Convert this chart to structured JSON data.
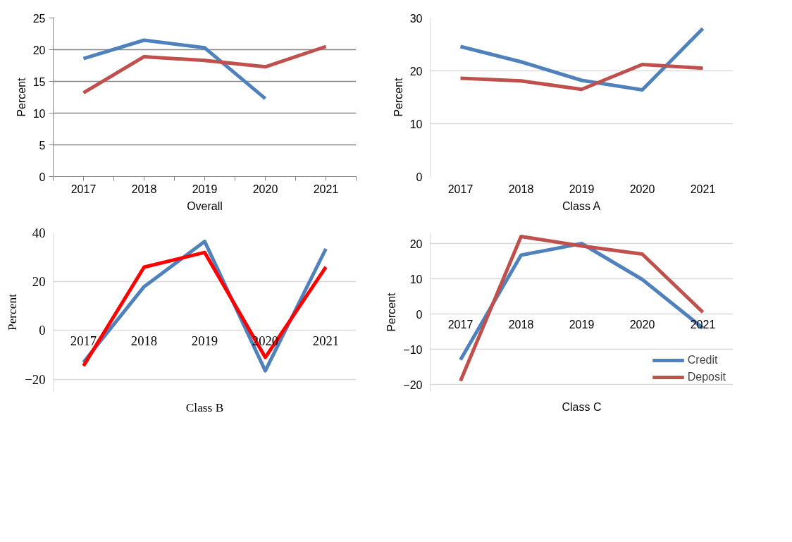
{
  "chart_data": [
    {
      "type": "line",
      "xlabel": "Overall",
      "ylabel": "Percent",
      "categories": [
        "2017",
        "2018",
        "2019",
        "2020",
        "2021"
      ],
      "ylim": [
        0,
        25
      ],
      "yticks": [
        0,
        5,
        10,
        15,
        20,
        25
      ],
      "grid": "y",
      "series": [
        {
          "color": "#4f81bd",
          "values": [
            18.6,
            21.5,
            20.3,
            12.3,
            null
          ]
        },
        {
          "color": "#c0504d",
          "values": [
            13.2,
            18.9,
            18.3,
            17.3,
            20.5
          ]
        }
      ]
    },
    {
      "type": "line",
      "xlabel": "Class A",
      "ylabel": "Percent",
      "categories": [
        "2017",
        "2018",
        "2019",
        "2020",
        "2021"
      ],
      "ylim": [
        0,
        30
      ],
      "yticks": [
        0,
        10,
        20,
        30
      ],
      "grid": "y",
      "series": [
        {
          "color": "#4f81bd",
          "values": [
            24.6,
            21.7,
            18.2,
            16.4,
            28.0
          ]
        },
        {
          "color": "#c0504d",
          "values": [
            18.6,
            18.1,
            16.5,
            21.2,
            20.5
          ]
        }
      ]
    },
    {
      "type": "line",
      "xlabel": "Class B",
      "ylabel": "Percent",
      "categories": [
        "2017",
        "2018",
        "2019",
        "2020",
        "2021"
      ],
      "ylim": [
        -25,
        40
      ],
      "yticks": [
        -20,
        0,
        20,
        40
      ],
      "grid": "y",
      "series": [
        {
          "color": "#4f81bd",
          "values": [
            -13,
            18,
            36.5,
            -16.5,
            33.5
          ]
        },
        {
          "color": "#ff0000",
          "values": [
            -14.5,
            26,
            32,
            -11,
            26
          ]
        }
      ]
    },
    {
      "type": "line",
      "xlabel": "Class C",
      "ylabel": "Percent",
      "categories": [
        "2017",
        "2018",
        "2019",
        "2020",
        "2021"
      ],
      "ylim": [
        -22,
        23
      ],
      "yticks": [
        -20,
        -10,
        0,
        10,
        20
      ],
      "grid": "y",
      "legend": "bottom right",
      "series": [
        {
          "name": "Credit",
          "color": "#4f81bd",
          "values": [
            -13,
            16.7,
            20,
            9.8,
            -4
          ]
        },
        {
          "name": "Deposit",
          "color": "#c0504d",
          "values": [
            -19,
            22,
            19.3,
            17,
            0.5
          ]
        }
      ]
    }
  ]
}
